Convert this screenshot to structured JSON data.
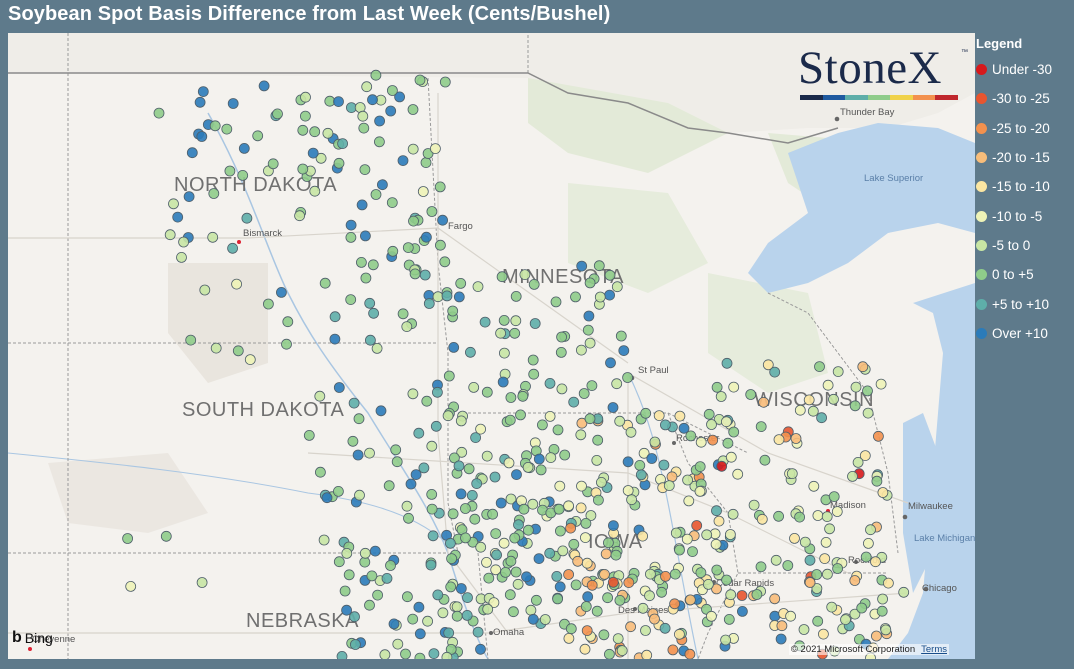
{
  "title": "Soybean Spot Basis Difference from Last Week (Cents/Bushel)",
  "legend": {
    "title": "Legend",
    "items": [
      {
        "label": "Under -30",
        "color": "#d7191c"
      },
      {
        "label": "-30 to -25",
        "color": "#e8552f"
      },
      {
        "label": "-25 to -20",
        "color": "#f3914e"
      },
      {
        "label": "-20 to -15",
        "color": "#f8bd7a"
      },
      {
        "label": "-15 to -10",
        "color": "#fbe6a2"
      },
      {
        "label": "-10 to -5",
        "color": "#eef3b7"
      },
      {
        "label": "-5 to 0",
        "color": "#c8e6a4"
      },
      {
        "label": "0 to +5",
        "color": "#8fcc8a"
      },
      {
        "label": "+5 to +10",
        "color": "#5eaea9"
      },
      {
        "label": "Over +10",
        "color": "#2b7bb9"
      }
    ]
  },
  "logo": {
    "text": "StoneX",
    "tm": "™",
    "bar_colors": [
      "#1b2a4a",
      "#1f5aa0",
      "#5eaea9",
      "#8fcc8a",
      "#f0d24a",
      "#f3914e",
      "#c0272d"
    ]
  },
  "map": {
    "state_labels": [
      "NORTH DAKOTA",
      "MINNESOTA",
      "SOUTH DAKOTA",
      "WISCONSIN",
      "IOWA",
      "NEBRASKA"
    ],
    "city_labels": [
      "Thunder Bay",
      "Bismarck",
      "Fargo",
      "St Paul",
      "Rochester",
      "Madison",
      "Milwaukee",
      "Rockford",
      "Cedar Rapids",
      "Des Moines",
      "Omaha",
      "Chicago",
      "Cheyenne"
    ],
    "water_labels": [
      "Lake Superior",
      "Lake Michigan"
    ]
  },
  "attribution": {
    "bing": "Bing",
    "copyright": "© 2021 Microsoft Corporation",
    "terms": "Terms"
  }
}
